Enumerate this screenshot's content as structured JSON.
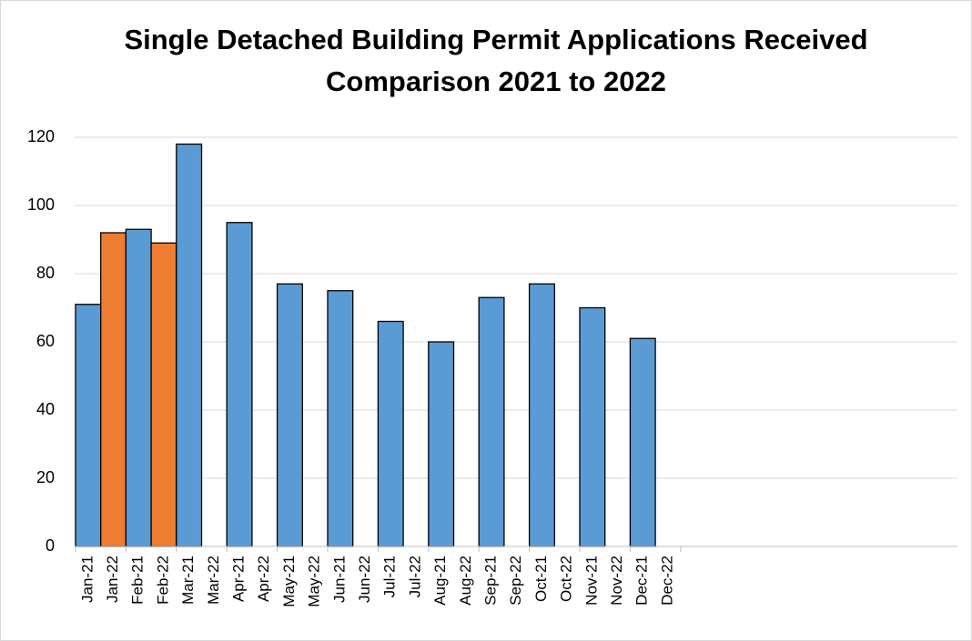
{
  "chart_data": {
    "type": "bar",
    "title": [
      "Single Detached Building Permit Applications Received",
      "Comparison 2021 to 2022"
    ],
    "categories": [
      "Jan-21",
      "Jan-22",
      "Feb-21",
      "Feb-22",
      "Mar-21",
      "Mar-22",
      "Apr-21",
      "Apr-22",
      "May-21",
      "May-22",
      "Jun-21",
      "Jun-22",
      "Jul-21",
      "Jul-22",
      "Aug-21",
      "Aug-22",
      "Sep-21",
      "Sep-22",
      "Oct-21",
      "Oct-22",
      "Nov-21",
      "Nov-22",
      "Dec-21",
      "Dec-22"
    ],
    "values": [
      71,
      92,
      93,
      89,
      118,
      null,
      95,
      null,
      77,
      null,
      75,
      null,
      66,
      null,
      60,
      null,
      73,
      null,
      77,
      null,
      70,
      null,
      61,
      null
    ],
    "colors": [
      "#5b9bd5",
      "#ed7d31",
      "#5b9bd5",
      "#ed7d31",
      "#5b9bd5",
      "#ed7d31",
      "#5b9bd5",
      "#ed7d31",
      "#5b9bd5",
      "#ed7d31",
      "#5b9bd5",
      "#ed7d31",
      "#5b9bd5",
      "#ed7d31",
      "#5b9bd5",
      "#ed7d31",
      "#5b9bd5",
      "#ed7d31",
      "#5b9bd5",
      "#ed7d31",
      "#5b9bd5",
      "#ed7d31",
      "#5b9bd5",
      "#ed7d31"
    ],
    "ylim": [
      0,
      120
    ],
    "yticks": [
      0,
      20,
      40,
      60,
      80,
      100,
      120
    ],
    "grid": true
  }
}
